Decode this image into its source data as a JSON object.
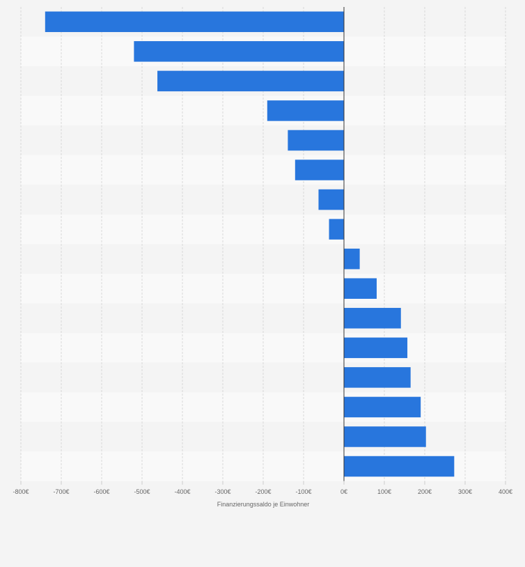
{
  "chart_data": {
    "type": "bar",
    "orientation": "horizontal",
    "title": "",
    "xlabel": "Finanzierungssaldo je Einwohner",
    "ylabel": "",
    "currency_suffix": "€",
    "categories": [
      "",
      "",
      "",
      "",
      "",
      "",
      "",
      "",
      "",
      "",
      "",
      "",
      "",
      "",
      "",
      ""
    ],
    "values": [
      -740,
      -520,
      -462,
      -190,
      -139,
      -121,
      -63,
      -37,
      39,
      81,
      141,
      157,
      165,
      190,
      203,
      273
    ],
    "xlim": [
      -800,
      400
    ],
    "ticks": [
      -800,
      -700,
      -600,
      -500,
      -400,
      -300,
      -200,
      -100,
      0,
      100,
      200,
      300,
      400
    ],
    "tick_labels": [
      "-800€",
      "-700€",
      "-600€",
      "-500€",
      "-400€",
      "-300€",
      "-200€",
      "-100€",
      "0€",
      "100€",
      "200€",
      "300€",
      "400€"
    ],
    "grid": true,
    "colors": {
      "bar": "#2876dd",
      "background": "#f4f4f4",
      "band_dark": "#f4f4f4",
      "band_light": "#f9f9f9",
      "grid": "#d9d9d9",
      "zero_line": "#333333",
      "tick_text": "#666666"
    }
  }
}
